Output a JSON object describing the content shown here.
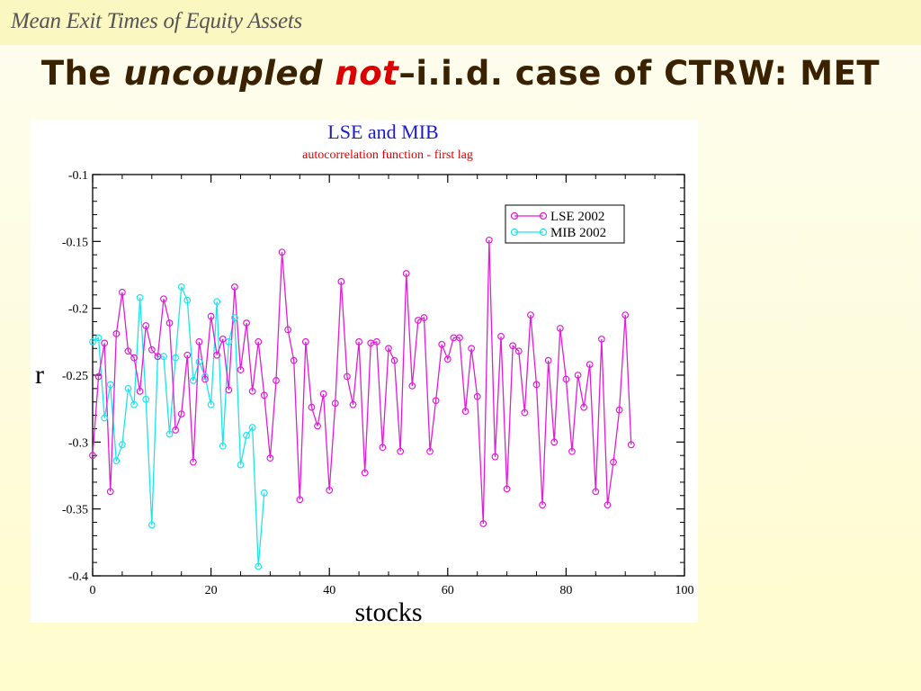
{
  "header": {
    "title": "Mean Exit Times of Equity Assets"
  },
  "slide": {
    "title_part1": "The ",
    "title_em": "uncoupled",
    "title_space": " ",
    "title_red": "not",
    "title_rest": "–i.i.d. case of CTRW: MET"
  },
  "colors": {
    "lse": "#e01ed8",
    "mib": "#1ee4ec",
    "title": "#1a1ad0",
    "subtitle": "#dd0000",
    "slide_title": "#3a2200"
  },
  "chart_data": {
    "type": "line",
    "title": "LSE and MIB",
    "subtitle": "autocorrelation function - first lag",
    "xlabel": "stocks",
    "ylabel": "r",
    "xlim": [
      0,
      100
    ],
    "ylim": [
      -0.4,
      -0.1
    ],
    "xticks": [
      0,
      20,
      40,
      60,
      80,
      100
    ],
    "xtick_labels": [
      "0",
      "20",
      "40",
      "60",
      "80",
      "100"
    ],
    "yticks": [
      -0.4,
      -0.35,
      -0.3,
      -0.25,
      -0.2,
      -0.15,
      -0.1
    ],
    "ytick_labels": [
      "-0.4",
      "-0.35",
      "-0.3",
      "-0.25",
      "-0.2",
      "-0.15",
      "-0.1"
    ],
    "legend_position": "top-right",
    "series": [
      {
        "name": "LSE 2002",
        "x": [
          0,
          1,
          2,
          3,
          4,
          5,
          6,
          7,
          8,
          9,
          10,
          11,
          12,
          13,
          14,
          15,
          16,
          17,
          18,
          19,
          20,
          21,
          22,
          23,
          24,
          25,
          26,
          27,
          28,
          29,
          30,
          31,
          32,
          33,
          34,
          35,
          36,
          37,
          38,
          39,
          40,
          41,
          42,
          43,
          44,
          45,
          46,
          47,
          48,
          49,
          50,
          51,
          52,
          53,
          54,
          55,
          56,
          57,
          58,
          59,
          60,
          61,
          62,
          63,
          64,
          65,
          66,
          67,
          68,
          69,
          70,
          71,
          72,
          73,
          74,
          75,
          76,
          77,
          78,
          79,
          80,
          81,
          82,
          83,
          84,
          85,
          86,
          87,
          88,
          89,
          90,
          91
        ],
        "y": [
          -0.31,
          -0.251,
          -0.226,
          -0.337,
          -0.219,
          -0.188,
          -0.232,
          -0.237,
          -0.262,
          -0.213,
          -0.231,
          -0.236,
          -0.193,
          -0.211,
          -0.291,
          -0.279,
          -0.235,
          -0.315,
          -0.225,
          -0.253,
          -0.206,
          -0.235,
          -0.223,
          -0.261,
          -0.184,
          -0.246,
          -0.211,
          -0.262,
          -0.225,
          -0.265,
          -0.312,
          -0.254,
          -0.158,
          -0.216,
          -0.239,
          -0.343,
          -0.225,
          -0.274,
          -0.288,
          -0.264,
          -0.336,
          -0.271,
          -0.18,
          -0.251,
          -0.272,
          -0.225,
          -0.323,
          -0.226,
          -0.225,
          -0.304,
          -0.23,
          -0.239,
          -0.307,
          -0.174,
          -0.258,
          -0.209,
          -0.207,
          -0.307,
          -0.269,
          -0.227,
          -0.238,
          -0.222,
          -0.222,
          -0.277,
          -0.23,
          -0.266,
          -0.361,
          -0.149,
          -0.311,
          -0.221,
          -0.335,
          -0.228,
          -0.232,
          -0.278,
          -0.205,
          -0.257,
          -0.347,
          -0.239,
          -0.3,
          -0.215,
          -0.253,
          -0.307,
          -0.25,
          -0.274,
          -0.242,
          -0.337,
          -0.223,
          -0.347,
          -0.315,
          -0.276,
          -0.205,
          -0.302
        ]
      },
      {
        "name": "MIB 2002",
        "x": [
          0,
          1,
          2,
          3,
          4,
          5,
          6,
          7,
          8,
          9,
          10,
          11,
          12,
          13,
          14,
          15,
          16,
          17,
          18,
          19,
          20,
          21,
          22,
          23,
          24,
          25,
          26,
          27,
          28,
          29
        ],
        "y": [
          -0.225,
          -0.222,
          -0.282,
          -0.257,
          -0.314,
          -0.302,
          -0.26,
          -0.272,
          -0.192,
          -0.268,
          -0.362,
          -0.236,
          -0.236,
          -0.294,
          -0.237,
          -0.184,
          -0.194,
          -0.254,
          -0.24,
          -0.251,
          -0.272,
          -0.195,
          -0.303,
          -0.225,
          -0.207,
          -0.317,
          -0.295,
          -0.289,
          -0.393,
          -0.338
        ]
      }
    ]
  }
}
